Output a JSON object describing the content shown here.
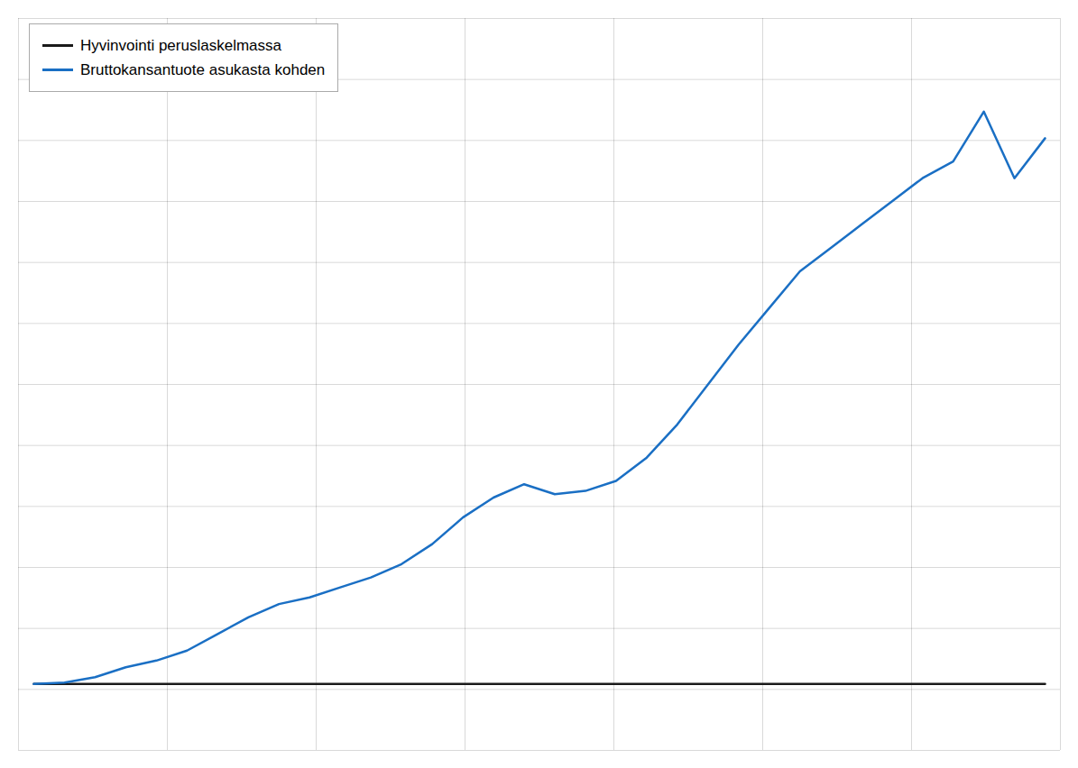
{
  "chart_data": {
    "type": "line",
    "x": [
      1,
      2,
      3,
      4,
      5,
      6,
      7,
      8,
      9,
      10,
      11,
      12,
      13,
      14,
      15,
      16,
      17,
      18,
      19,
      20,
      21,
      22,
      23,
      24,
      25,
      26,
      27,
      28,
      29,
      30,
      31,
      32,
      33,
      34
    ],
    "series": [
      {
        "name": "Hyvinvointi peruslaskelmassa",
        "color": "#1a1a1a",
        "values": [
          10,
          10,
          10,
          10,
          10,
          10,
          10,
          10,
          10,
          10,
          10,
          10,
          10,
          10,
          10,
          10,
          10,
          10,
          10,
          10,
          10,
          10,
          10,
          10,
          10,
          10,
          10,
          10,
          10,
          10,
          10,
          10,
          10,
          10
        ]
      },
      {
        "name": "Bruttokansantuote asukasta kohden",
        "color": "#1a6fc4",
        "values": [
          10,
          10.2,
          11.0,
          12.5,
          13.5,
          15.0,
          17.5,
          20.0,
          22.0,
          23.0,
          24.5,
          26.0,
          28.0,
          31.0,
          35.0,
          38.0,
          40.0,
          38.5,
          39.0,
          40.5,
          44.0,
          49.0,
          55.0,
          61.0,
          66.5,
          72.0,
          75.5,
          79.0,
          82.5,
          86.0,
          88.5,
          96.0,
          86.0,
          92.0
        ]
      }
    ],
    "xlim": [
      0.5,
      34.5
    ],
    "xticks": [
      0.5,
      5.357142857142857,
      10.214285714285714,
      15.071428571428571,
      19.928571428571427,
      24.785714285714285,
      29.642857142857142,
      34.5
    ],
    "ylim": [
      0,
      110
    ],
    "yticks": [
      0,
      9.166666666666666,
      18.333333333333332,
      27.5,
      36.666666666666664,
      45.83333333333333,
      55,
      64.16666666666666,
      73.33333333333333,
      82.5,
      91.66666666666666,
      100.83333333333333,
      110
    ],
    "grid": true,
    "tick_labels": false,
    "legend": "upper left"
  }
}
